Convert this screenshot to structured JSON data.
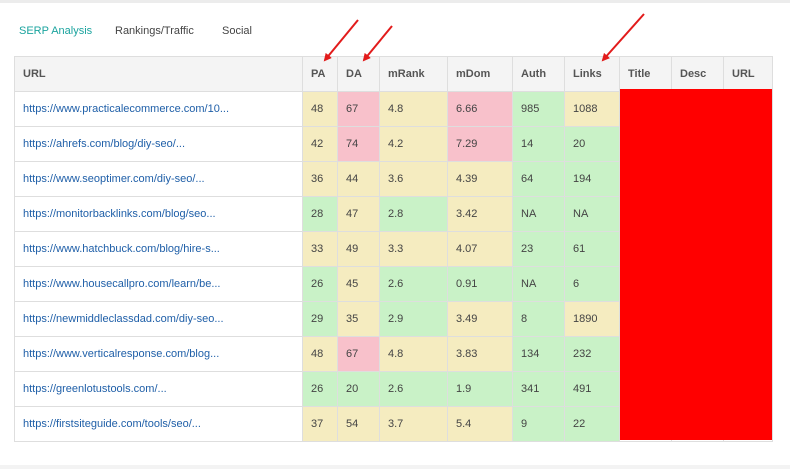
{
  "tabs": [
    {
      "label": "SERP Analysis",
      "active": true
    },
    {
      "label": "Rankings/Traffic",
      "active": false
    },
    {
      "label": "Social",
      "active": false
    }
  ],
  "columns": [
    "URL",
    "PA",
    "DA",
    "mRank",
    "mDom",
    "Auth",
    "Links",
    "Title",
    "Desc",
    "URL"
  ],
  "rows": [
    {
      "url": "https://www.practicalecommerce.com/10...",
      "pa": "48",
      "da": "67",
      "mrank": "4.8",
      "mdom": "6.66",
      "auth": "985",
      "links": "1088",
      "colors": [
        "y",
        "p",
        "y",
        "p",
        "g",
        "y"
      ]
    },
    {
      "url": "https://ahrefs.com/blog/diy-seo/...",
      "pa": "42",
      "da": "74",
      "mrank": "4.2",
      "mdom": "7.29",
      "auth": "14",
      "links": "20",
      "colors": [
        "y",
        "p",
        "y",
        "p",
        "g",
        "g"
      ]
    },
    {
      "url": "https://www.seoptimer.com/diy-seo/...",
      "pa": "36",
      "da": "44",
      "mrank": "3.6",
      "mdom": "4.39",
      "auth": "64",
      "links": "194",
      "colors": [
        "y",
        "y",
        "y",
        "y",
        "g",
        "g"
      ]
    },
    {
      "url": "https://monitorbacklinks.com/blog/seo...",
      "pa": "28",
      "da": "47",
      "mrank": "2.8",
      "mdom": "3.42",
      "auth": "NA",
      "links": "NA",
      "colors": [
        "g",
        "y",
        "g",
        "y",
        "g",
        "g"
      ]
    },
    {
      "url": "https://www.hatchbuck.com/blog/hire-s...",
      "pa": "33",
      "da": "49",
      "mrank": "3.3",
      "mdom": "4.07",
      "auth": "23",
      "links": "61",
      "colors": [
        "y",
        "y",
        "y",
        "y",
        "g",
        "g"
      ]
    },
    {
      "url": "https://www.housecallpro.com/learn/be...",
      "pa": "26",
      "da": "45",
      "mrank": "2.6",
      "mdom": "0.91",
      "auth": "NA",
      "links": "6",
      "colors": [
        "g",
        "y",
        "g",
        "g",
        "g",
        "g"
      ]
    },
    {
      "url": "https://newmiddleclassdad.com/diy-seo...",
      "pa": "29",
      "da": "35",
      "mrank": "2.9",
      "mdom": "3.49",
      "auth": "8",
      "links": "1890",
      "colors": [
        "g",
        "y",
        "g",
        "y",
        "g",
        "y"
      ]
    },
    {
      "url": "https://www.verticalresponse.com/blog...",
      "pa": "48",
      "da": "67",
      "mrank": "4.8",
      "mdom": "3.83",
      "auth": "134",
      "links": "232",
      "colors": [
        "y",
        "p",
        "y",
        "y",
        "g",
        "g"
      ]
    },
    {
      "url": "https://greenlotustools.com/...",
      "pa": "26",
      "da": "20",
      "mrank": "2.6",
      "mdom": "1.9",
      "auth": "341",
      "links": "491",
      "colors": [
        "g",
        "g",
        "g",
        "g",
        "g",
        "g"
      ]
    },
    {
      "url": "https://firstsiteguide.com/tools/seo/...",
      "pa": "37",
      "da": "54",
      "mrank": "3.7",
      "mdom": "5.4",
      "auth": "9",
      "links": "22",
      "colors": [
        "y",
        "y",
        "y",
        "y",
        "g",
        "g"
      ]
    }
  ],
  "colors": {
    "accent": "#1aa39e",
    "link": "#1f5fa8",
    "yellow_cell": "#f5ecc0",
    "green_cell": "#c9f2c7",
    "pink_cell": "#f8c1cb",
    "redaction": "#ff0000",
    "arrow": "#e21b1b"
  }
}
